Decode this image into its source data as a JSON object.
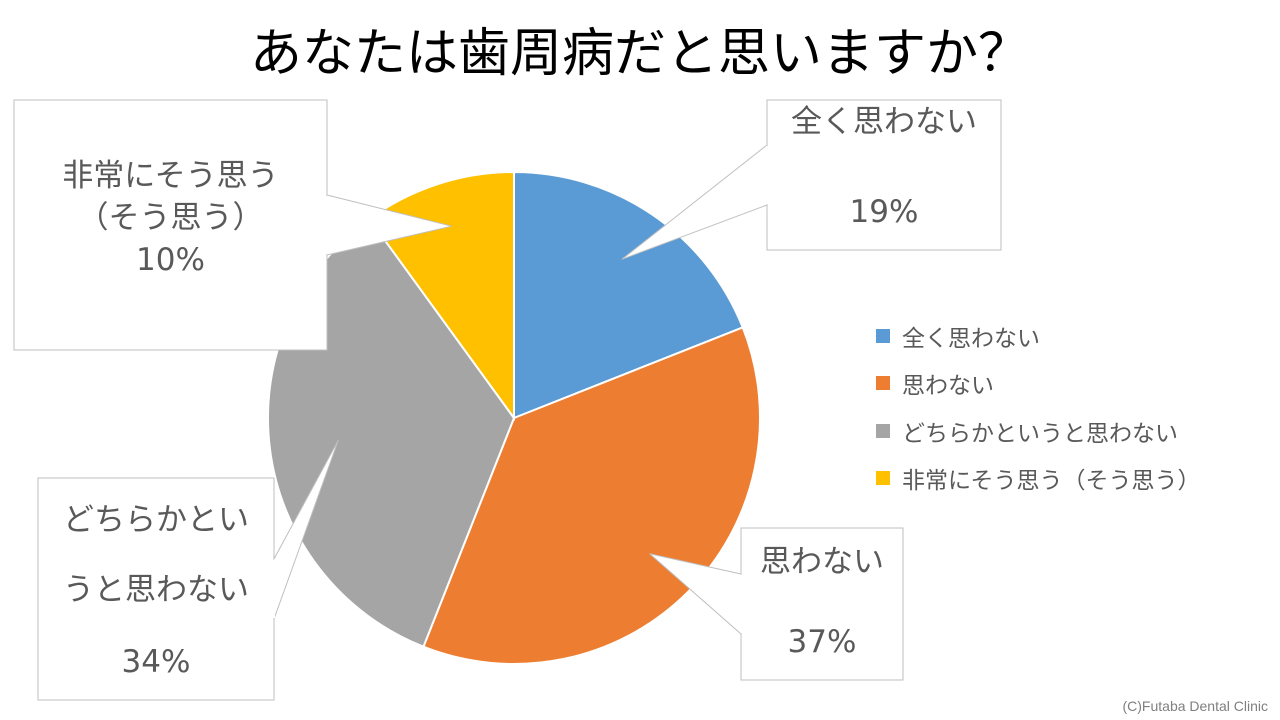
{
  "chart_data": {
    "type": "pie",
    "title": "あなたは歯周病だと思いますか？",
    "slices": [
      {
        "label": "全く思わない",
        "callout_lines": [
          "全く思わない"
        ],
        "value": 19,
        "value_label": "19%",
        "color": "#5B9BD5"
      },
      {
        "label": "思わない",
        "callout_lines": [
          "思わない"
        ],
        "value": 37,
        "value_label": "37%",
        "color": "#ED7D31"
      },
      {
        "label": "どちらかというと思わない",
        "callout_lines": [
          "どちらかとい",
          "うと思わない"
        ],
        "value": 34,
        "value_label": "34%",
        "color": "#A5A5A5"
      },
      {
        "label": "非常にそう思う（そう思う）",
        "callout_lines": [
          "非常にそう思う",
          "（そう思う）"
        ],
        "value": 10,
        "value_label": "10%",
        "color": "#FFC000"
      }
    ],
    "legend_placement": "right"
  },
  "footer": {
    "copyright": "(C)Futaba Dental Clinic"
  }
}
